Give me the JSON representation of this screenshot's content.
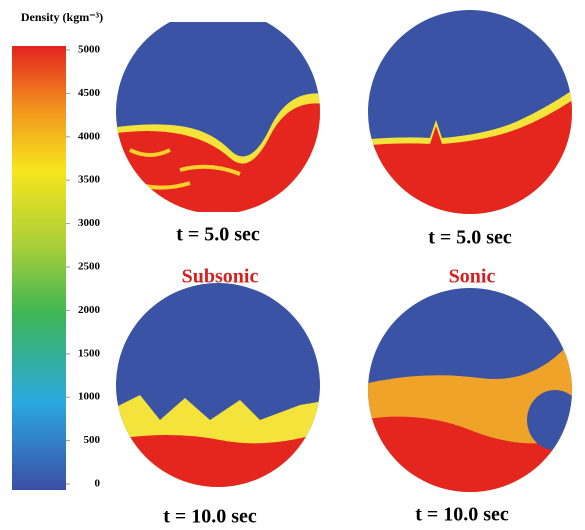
{
  "colorbar": {
    "title": "Density (kgm⁻³)",
    "lim": [
      0,
      5000
    ],
    "ticks": [
      0,
      500,
      1000,
      1500,
      2000,
      2500,
      3000,
      3500,
      4000,
      4500,
      5000
    ]
  },
  "columns": [
    {
      "regime": "Subsonic",
      "panels": [
        {
          "label": "t = 5.0 sec"
        },
        {
          "label": "t = 10.0 sec"
        }
      ]
    },
    {
      "regime": "Sonic",
      "panels": [
        {
          "label": "t = 5.0 sec"
        },
        {
          "label": "t = 10.0 sec"
        }
      ]
    }
  ]
}
